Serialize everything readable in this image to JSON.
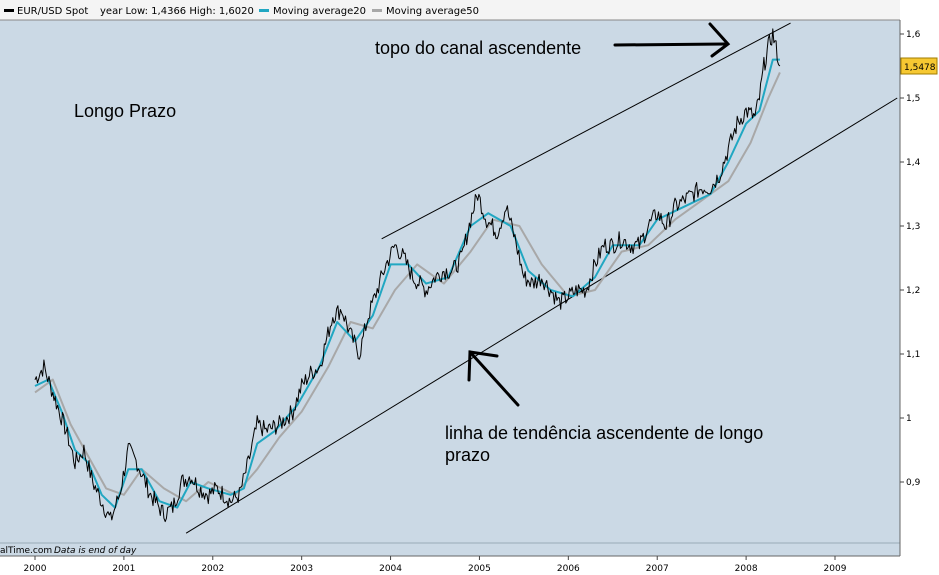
{
  "chart_data": {
    "type": "line",
    "legend": {
      "instrument": "EUR/USD Spot",
      "year_range": "year Low: 1,4366 High: 1,6020",
      "ma20": "Moving average20",
      "ma50": "Moving average50"
    },
    "x_ticks": [
      "2000",
      "2001",
      "2002",
      "2003",
      "2004",
      "2005",
      "2006",
      "2007",
      "2008",
      "2009"
    ],
    "y_ticks": [
      "0,9",
      "1",
      "1,1",
      "1,2",
      "1,3",
      "1,4",
      "1,5",
      "1,6"
    ],
    "ylim": [
      0.81,
      1.62
    ],
    "xlim": [
      1999.9,
      2009.7
    ],
    "last_value": "1,5478",
    "series": [
      {
        "name": "EUR/USD Spot",
        "color": "#000000",
        "points": [
          [
            2000.0,
            1.06
          ],
          [
            2000.1,
            1.08
          ],
          [
            2000.2,
            1.04
          ],
          [
            2000.35,
            0.98
          ],
          [
            2000.45,
            0.93
          ],
          [
            2000.55,
            0.95
          ],
          [
            2000.65,
            0.9
          ],
          [
            2000.75,
            0.87
          ],
          [
            2000.85,
            0.84
          ],
          [
            2000.95,
            0.88
          ],
          [
            2001.05,
            0.95
          ],
          [
            2001.15,
            0.93
          ],
          [
            2001.3,
            0.88
          ],
          [
            2001.45,
            0.85
          ],
          [
            2001.55,
            0.86
          ],
          [
            2001.65,
            0.9
          ],
          [
            2001.75,
            0.91
          ],
          [
            2001.85,
            0.89
          ],
          [
            2001.95,
            0.88
          ],
          [
            2002.05,
            0.89
          ],
          [
            2002.2,
            0.87
          ],
          [
            2002.3,
            0.88
          ],
          [
            2002.4,
            0.93
          ],
          [
            2002.5,
            0.99
          ],
          [
            2002.6,
            0.98
          ],
          [
            2002.75,
            0.99
          ],
          [
            2002.9,
            1.01
          ],
          [
            2003.0,
            1.05
          ],
          [
            2003.1,
            1.07
          ],
          [
            2003.2,
            1.08
          ],
          [
            2003.35,
            1.16
          ],
          [
            2003.45,
            1.17
          ],
          [
            2003.55,
            1.13
          ],
          [
            2003.65,
            1.1
          ],
          [
            2003.75,
            1.16
          ],
          [
            2003.85,
            1.2
          ],
          [
            2003.95,
            1.24
          ],
          [
            2004.05,
            1.27
          ],
          [
            2004.15,
            1.25
          ],
          [
            2004.25,
            1.22
          ],
          [
            2004.4,
            1.2
          ],
          [
            2004.5,
            1.22
          ],
          [
            2004.6,
            1.23
          ],
          [
            2004.7,
            1.23
          ],
          [
            2004.8,
            1.25
          ],
          [
            2004.9,
            1.31
          ],
          [
            2004.98,
            1.35
          ],
          [
            2005.08,
            1.31
          ],
          [
            2005.2,
            1.29
          ],
          [
            2005.3,
            1.33
          ],
          [
            2005.4,
            1.28
          ],
          [
            2005.5,
            1.22
          ],
          [
            2005.6,
            1.21
          ],
          [
            2005.7,
            1.22
          ],
          [
            2005.8,
            1.2
          ],
          [
            2005.9,
            1.18
          ],
          [
            2006.0,
            1.19
          ],
          [
            2006.1,
            1.2
          ],
          [
            2006.2,
            1.2
          ],
          [
            2006.3,
            1.24
          ],
          [
            2006.4,
            1.27
          ],
          [
            2006.5,
            1.27
          ],
          [
            2006.6,
            1.28
          ],
          [
            2006.7,
            1.27
          ],
          [
            2006.8,
            1.27
          ],
          [
            2006.9,
            1.3
          ],
          [
            2007.0,
            1.32
          ],
          [
            2007.1,
            1.3
          ],
          [
            2007.2,
            1.33
          ],
          [
            2007.3,
            1.34
          ],
          [
            2007.4,
            1.35
          ],
          [
            2007.5,
            1.36
          ],
          [
            2007.6,
            1.36
          ],
          [
            2007.7,
            1.38
          ],
          [
            2007.8,
            1.42
          ],
          [
            2007.9,
            1.46
          ],
          [
            2008.0,
            1.48
          ],
          [
            2008.1,
            1.47
          ],
          [
            2008.15,
            1.5
          ],
          [
            2008.2,
            1.55
          ],
          [
            2008.25,
            1.58
          ],
          [
            2008.3,
            1.6
          ],
          [
            2008.35,
            1.57
          ],
          [
            2008.38,
            1.55
          ]
        ]
      },
      {
        "name": "Moving average20",
        "color": "#21a7c2",
        "points": [
          [
            2000.0,
            1.05
          ],
          [
            2000.15,
            1.06
          ],
          [
            2000.3,
            1.01
          ],
          [
            2000.45,
            0.95
          ],
          [
            2000.6,
            0.93
          ],
          [
            2000.75,
            0.88
          ],
          [
            2000.9,
            0.86
          ],
          [
            2001.05,
            0.92
          ],
          [
            2001.2,
            0.92
          ],
          [
            2001.4,
            0.87
          ],
          [
            2001.6,
            0.86
          ],
          [
            2001.75,
            0.9
          ],
          [
            2001.95,
            0.89
          ],
          [
            2002.2,
            0.88
          ],
          [
            2002.35,
            0.89
          ],
          [
            2002.5,
            0.96
          ],
          [
            2002.7,
            0.98
          ],
          [
            2002.95,
            1.02
          ],
          [
            2003.2,
            1.08
          ],
          [
            2003.4,
            1.15
          ],
          [
            2003.6,
            1.12
          ],
          [
            2003.8,
            1.16
          ],
          [
            2004.0,
            1.24
          ],
          [
            2004.2,
            1.24
          ],
          [
            2004.4,
            1.21
          ],
          [
            2004.65,
            1.22
          ],
          [
            2004.9,
            1.3
          ],
          [
            2005.1,
            1.32
          ],
          [
            2005.35,
            1.3
          ],
          [
            2005.55,
            1.23
          ],
          [
            2005.8,
            1.2
          ],
          [
            2006.05,
            1.19
          ],
          [
            2006.3,
            1.22
          ],
          [
            2006.5,
            1.27
          ],
          [
            2006.8,
            1.27
          ],
          [
            2007.0,
            1.31
          ],
          [
            2007.3,
            1.33
          ],
          [
            2007.6,
            1.35
          ],
          [
            2007.8,
            1.4
          ],
          [
            2008.0,
            1.46
          ],
          [
            2008.15,
            1.48
          ],
          [
            2008.3,
            1.56
          ],
          [
            2008.38,
            1.56
          ]
        ]
      },
      {
        "name": "Moving average50",
        "color": "#a8a8a8",
        "points": [
          [
            2000.0,
            1.04
          ],
          [
            2000.2,
            1.06
          ],
          [
            2000.4,
            0.99
          ],
          [
            2000.6,
            0.94
          ],
          [
            2000.8,
            0.89
          ],
          [
            2001.0,
            0.88
          ],
          [
            2001.2,
            0.92
          ],
          [
            2001.45,
            0.89
          ],
          [
            2001.7,
            0.87
          ],
          [
            2001.95,
            0.9
          ],
          [
            2002.25,
            0.88
          ],
          [
            2002.5,
            0.92
          ],
          [
            2002.75,
            0.97
          ],
          [
            2003.0,
            1.01
          ],
          [
            2003.3,
            1.08
          ],
          [
            2003.55,
            1.15
          ],
          [
            2003.8,
            1.14
          ],
          [
            2004.05,
            1.2
          ],
          [
            2004.3,
            1.24
          ],
          [
            2004.6,
            1.21
          ],
          [
            2004.9,
            1.26
          ],
          [
            2005.15,
            1.31
          ],
          [
            2005.45,
            1.3
          ],
          [
            2005.7,
            1.24
          ],
          [
            2006.0,
            1.19
          ],
          [
            2006.3,
            1.2
          ],
          [
            2006.6,
            1.26
          ],
          [
            2006.9,
            1.27
          ],
          [
            2007.2,
            1.31
          ],
          [
            2007.5,
            1.34
          ],
          [
            2007.8,
            1.37
          ],
          [
            2008.05,
            1.43
          ],
          [
            2008.25,
            1.5
          ],
          [
            2008.38,
            1.54
          ]
        ]
      }
    ],
    "trendlines": [
      {
        "name": "upper-channel",
        "from": [
          2003.9,
          1.28
        ],
        "to": [
          2008.5,
          1.617
        ]
      },
      {
        "name": "lower-trend",
        "from": [
          2001.7,
          0.82
        ],
        "to": [
          2009.7,
          1.5
        ]
      }
    ]
  },
  "annotations": {
    "top_label": "topo do canal ascendente",
    "trend_label_line1": "linha de tendência ascendente de longo",
    "trend_label_line2": "prazo",
    "left_label": "Longo Prazo"
  },
  "footer": {
    "source": "alTime.com",
    "note": "Data is end of day"
  },
  "colors": {
    "plot_bg": "#cbd9e5",
    "price": "#000000",
    "ma20": "#21a7c2",
    "ma50": "#a8a8a8",
    "last_value_bg": "#f6c832"
  }
}
